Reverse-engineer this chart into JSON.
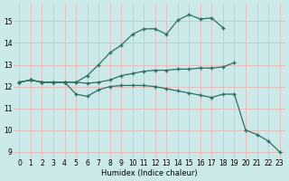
{
  "xlabel": "Humidex (Indice chaleur)",
  "xlim": [
    -0.5,
    23.5
  ],
  "ylim": [
    8.7,
    15.8
  ],
  "yticks": [
    9,
    10,
    11,
    12,
    13,
    14,
    15
  ],
  "xticks": [
    0,
    1,
    2,
    3,
    4,
    5,
    6,
    7,
    8,
    9,
    10,
    11,
    12,
    13,
    14,
    15,
    16,
    17,
    18,
    19,
    20,
    21,
    22,
    23
  ],
  "bg_color": "#cce9e9",
  "grid_color": "#e8b8b8",
  "line_color": "#2d7065",
  "lines": [
    {
      "x": [
        0,
        1,
        2,
        3,
        4,
        5,
        6,
        7,
        8,
        9,
        10,
        11,
        12,
        13,
        14,
        15,
        16,
        17,
        18
      ],
      "y": [
        12.2,
        12.3,
        12.2,
        12.2,
        12.2,
        12.2,
        12.5,
        13.0,
        13.55,
        13.9,
        14.4,
        14.65,
        14.65,
        14.4,
        15.05,
        15.3,
        15.1,
        15.15,
        14.7
      ]
    },
    {
      "x": [
        0,
        1,
        2,
        3,
        4,
        5,
        6,
        7,
        8,
        9,
        10,
        11,
        12,
        13,
        14,
        15,
        16,
        17,
        18,
        19
      ],
      "y": [
        12.2,
        12.3,
        12.2,
        12.2,
        12.2,
        12.2,
        12.15,
        12.2,
        12.3,
        12.5,
        12.6,
        12.7,
        12.75,
        12.75,
        12.8,
        12.8,
        12.85,
        12.85,
        12.9,
        13.1
      ]
    },
    {
      "x": [
        0,
        1,
        2,
        3,
        4,
        5,
        6,
        7,
        8,
        9,
        10,
        11,
        12,
        13,
        14,
        15,
        16,
        17,
        18,
        19,
        20,
        21,
        22,
        23
      ],
      "y": [
        12.2,
        12.3,
        12.2,
        12.2,
        12.2,
        11.65,
        11.55,
        11.85,
        12.0,
        12.05,
        12.05,
        12.05,
        12.0,
        11.9,
        11.8,
        11.7,
        11.6,
        11.5,
        11.65,
        11.65,
        10.0,
        9.8,
        9.5,
        9.0
      ]
    }
  ]
}
